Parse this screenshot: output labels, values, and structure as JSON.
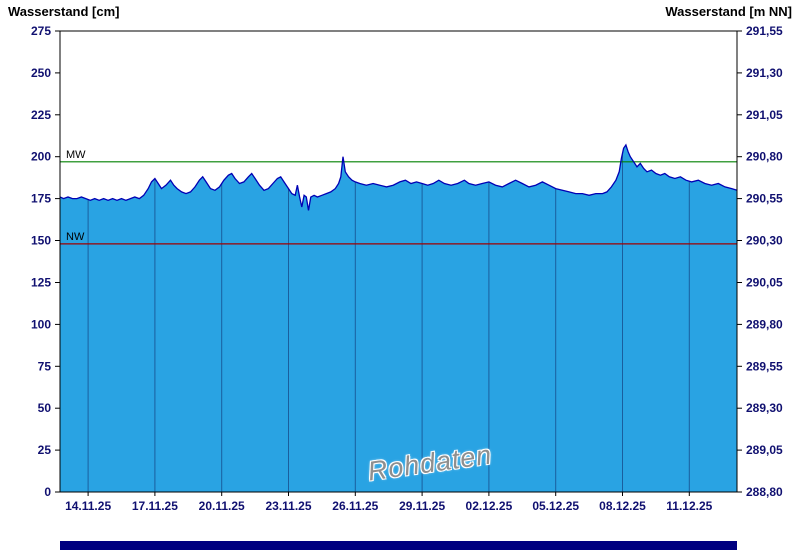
{
  "header": {
    "left_title": "Wasserstand [cm]",
    "right_title": "Wasserstand [m NN]"
  },
  "chart_data": {
    "type": "area",
    "title": "",
    "watermark": "Rohdaten",
    "x_tick_labels": [
      "14.11.25",
      "17.11.25",
      "20.11.25",
      "23.11.25",
      "26.11.25",
      "29.11.25",
      "02.12.25",
      "05.12.25",
      "08.12.25",
      "11.12.25"
    ],
    "x_tick_days": [
      0,
      3,
      6,
      9,
      12,
      15,
      18,
      21,
      24,
      27
    ],
    "x_range_days": [
      -1.26,
      29.14
    ],
    "y_left": {
      "title": "Wasserstand [cm]",
      "min": 0,
      "max": 275,
      "step": 25
    },
    "y_right": {
      "title": "Wasserstand [m NN]",
      "min": 288.8,
      "max": 291.55,
      "step": 0.25,
      "offset_from_cm": 288.8,
      "scale_per_cm": 0.01
    },
    "reference_lines": [
      {
        "label": "MW",
        "value_cm": 197,
        "color": "#008000"
      },
      {
        "label": "NW",
        "value_cm": 148,
        "color": "#a00000"
      }
    ],
    "series": [
      {
        "name": "Wasserstand Rohdaten",
        "fill_color": "#29a3e3",
        "line_color": "#0000b4",
        "points": [
          [
            -1.26,
            176
          ],
          [
            -1.1,
            175
          ],
          [
            -0.9,
            176
          ],
          [
            -0.7,
            175
          ],
          [
            -0.5,
            175
          ],
          [
            -0.3,
            176
          ],
          [
            -0.1,
            175
          ],
          [
            0.1,
            174
          ],
          [
            0.3,
            175
          ],
          [
            0.5,
            174
          ],
          [
            0.7,
            175
          ],
          [
            0.9,
            174
          ],
          [
            1.1,
            175
          ],
          [
            1.3,
            174
          ],
          [
            1.5,
            175
          ],
          [
            1.7,
            174
          ],
          [
            1.9,
            175
          ],
          [
            2.1,
            176
          ],
          [
            2.3,
            175
          ],
          [
            2.5,
            177
          ],
          [
            2.7,
            181
          ],
          [
            2.85,
            185
          ],
          [
            3.0,
            187
          ],
          [
            3.15,
            184
          ],
          [
            3.3,
            181
          ],
          [
            3.5,
            183
          ],
          [
            3.7,
            186
          ],
          [
            3.85,
            183
          ],
          [
            4.0,
            181
          ],
          [
            4.2,
            179
          ],
          [
            4.4,
            178
          ],
          [
            4.6,
            179
          ],
          [
            4.8,
            182
          ],
          [
            5.0,
            186
          ],
          [
            5.15,
            188
          ],
          [
            5.3,
            185
          ],
          [
            5.5,
            181
          ],
          [
            5.7,
            180
          ],
          [
            5.9,
            182
          ],
          [
            6.1,
            186
          ],
          [
            6.3,
            189
          ],
          [
            6.45,
            190
          ],
          [
            6.6,
            187
          ],
          [
            6.8,
            184
          ],
          [
            7.0,
            185
          ],
          [
            7.2,
            188
          ],
          [
            7.35,
            190
          ],
          [
            7.5,
            187
          ],
          [
            7.7,
            183
          ],
          [
            7.9,
            180
          ],
          [
            8.1,
            181
          ],
          [
            8.3,
            184
          ],
          [
            8.5,
            187
          ],
          [
            8.65,
            188
          ],
          [
            8.8,
            185
          ],
          [
            9.0,
            181
          ],
          [
            9.15,
            178
          ],
          [
            9.3,
            177
          ],
          [
            9.4,
            183
          ],
          [
            9.5,
            176
          ],
          [
            9.6,
            170
          ],
          [
            9.7,
            177
          ],
          [
            9.8,
            176
          ],
          [
            9.9,
            168
          ],
          [
            10.0,
            176
          ],
          [
            10.15,
            177
          ],
          [
            10.3,
            176
          ],
          [
            10.5,
            177
          ],
          [
            10.7,
            178
          ],
          [
            10.9,
            179
          ],
          [
            11.1,
            181
          ],
          [
            11.25,
            184
          ],
          [
            11.35,
            188
          ],
          [
            11.45,
            200
          ],
          [
            11.55,
            191
          ],
          [
            11.7,
            188
          ],
          [
            11.85,
            186
          ],
          [
            12.0,
            185
          ],
          [
            12.2,
            184
          ],
          [
            12.5,
            183
          ],
          [
            12.8,
            184
          ],
          [
            13.1,
            183
          ],
          [
            13.4,
            182
          ],
          [
            13.7,
            183
          ],
          [
            14.0,
            185
          ],
          [
            14.25,
            186
          ],
          [
            14.5,
            184
          ],
          [
            14.75,
            185
          ],
          [
            15.0,
            184
          ],
          [
            15.25,
            183
          ],
          [
            15.5,
            184
          ],
          [
            15.75,
            186
          ],
          [
            16.0,
            184
          ],
          [
            16.3,
            183
          ],
          [
            16.6,
            184
          ],
          [
            16.9,
            186
          ],
          [
            17.1,
            184
          ],
          [
            17.4,
            183
          ],
          [
            17.7,
            184
          ],
          [
            18.0,
            185
          ],
          [
            18.3,
            183
          ],
          [
            18.6,
            182
          ],
          [
            18.9,
            184
          ],
          [
            19.2,
            186
          ],
          [
            19.5,
            184
          ],
          [
            19.8,
            182
          ],
          [
            20.1,
            183
          ],
          [
            20.4,
            185
          ],
          [
            20.7,
            183
          ],
          [
            21.0,
            181
          ],
          [
            21.3,
            180
          ],
          [
            21.6,
            179
          ],
          [
            21.9,
            178
          ],
          [
            22.2,
            178
          ],
          [
            22.5,
            177
          ],
          [
            22.8,
            178
          ],
          [
            23.1,
            178
          ],
          [
            23.3,
            179
          ],
          [
            23.5,
            182
          ],
          [
            23.7,
            186
          ],
          [
            23.85,
            191
          ],
          [
            23.95,
            199
          ],
          [
            24.05,
            205
          ],
          [
            24.15,
            207
          ],
          [
            24.25,
            203
          ],
          [
            24.35,
            200
          ],
          [
            24.5,
            197
          ],
          [
            24.65,
            194
          ],
          [
            24.8,
            196
          ],
          [
            24.95,
            193
          ],
          [
            25.1,
            191
          ],
          [
            25.3,
            192
          ],
          [
            25.5,
            190
          ],
          [
            25.7,
            189
          ],
          [
            25.9,
            190
          ],
          [
            26.1,
            188
          ],
          [
            26.35,
            187
          ],
          [
            26.6,
            188
          ],
          [
            26.85,
            186
          ],
          [
            27.1,
            185
          ],
          [
            27.4,
            186
          ],
          [
            27.7,
            184
          ],
          [
            28.0,
            183
          ],
          [
            28.3,
            184
          ],
          [
            28.6,
            182
          ],
          [
            28.9,
            181
          ],
          [
            29.14,
            180
          ]
        ]
      }
    ],
    "colors": {
      "grid": "#1a5e9e",
      "frame": "#000000",
      "axis_text": "#101070",
      "ref_label_text": "#000000",
      "bottom_bar": "#000080",
      "watermark_text": "#8f8f8f"
    }
  }
}
